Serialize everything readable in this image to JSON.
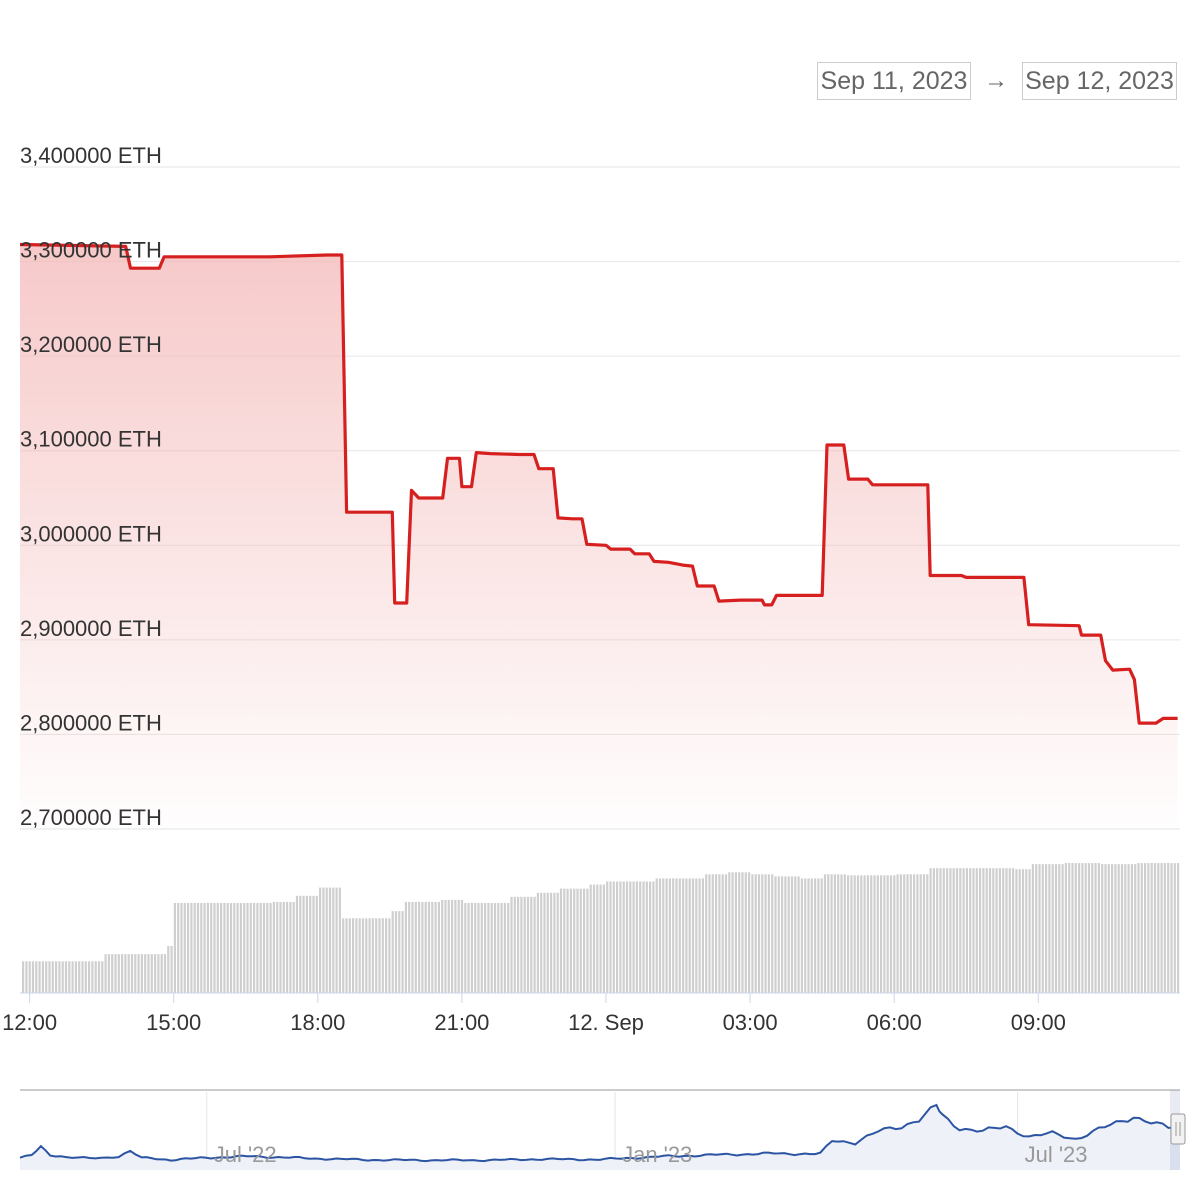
{
  "range_selector": {
    "from_value": "Sep 11, 2023",
    "to_value": "Sep 12, 2023",
    "arrow": "→"
  },
  "colors": {
    "main_line": "#d62020",
    "main_fill": "#f4b7b7",
    "grid": "#e6e6e6",
    "volume_bar": "#cfcfcf",
    "navigator_line": "#2b54a3",
    "navigator_fill": "#eef1f8"
  },
  "chart_data": {
    "type": "line",
    "title": "",
    "xlabel": "",
    "ylabel": "",
    "y_unit": "ETH",
    "ylim": [
      2700000,
      3400000
    ],
    "y_ticks": [
      {
        "value": 3400000,
        "label": "3,400000 ETH"
      },
      {
        "value": 3300000,
        "label": "3,300000 ETH"
      },
      {
        "value": 3200000,
        "label": "3,200000 ETH"
      },
      {
        "value": 3100000,
        "label": "3,100000 ETH"
      },
      {
        "value": 3000000,
        "label": "3,000000 ETH"
      },
      {
        "value": 2900000,
        "label": "2,900000 ETH"
      },
      {
        "value": 2800000,
        "label": "2,800000 ETH"
      },
      {
        "value": 2700000,
        "label": "2,700000 ETH"
      }
    ],
    "x_range_hours": [
      11.8,
      35.95
    ],
    "x_ticks": [
      {
        "hour": 12,
        "label": "12:00"
      },
      {
        "hour": 15,
        "label": "15:00"
      },
      {
        "hour": 18,
        "label": "18:00"
      },
      {
        "hour": 21,
        "label": "21:00"
      },
      {
        "hour": 24,
        "label": "12. Sep"
      },
      {
        "hour": 27,
        "label": "03:00"
      },
      {
        "hour": 30,
        "label": "06:00"
      },
      {
        "hour": 33,
        "label": "09:00"
      }
    ],
    "grid": true,
    "legend": "none",
    "series": [
      {
        "values": [
          [
            11.8,
            3318000
          ],
          [
            14.0,
            3316000
          ],
          [
            14.1,
            3293000
          ],
          [
            14.7,
            3293000
          ],
          [
            14.8,
            3305000
          ],
          [
            17.0,
            3305000
          ],
          [
            18.2,
            3307000
          ],
          [
            18.5,
            3307000
          ],
          [
            18.6,
            3035000
          ],
          [
            19.55,
            3035000
          ],
          [
            19.6,
            2939000
          ],
          [
            19.85,
            2939000
          ],
          [
            19.95,
            3058000
          ],
          [
            20.1,
            3050000
          ],
          [
            20.6,
            3050000
          ],
          [
            20.7,
            3092000
          ],
          [
            20.95,
            3092000
          ],
          [
            21.0,
            3062000
          ],
          [
            21.2,
            3062000
          ],
          [
            21.3,
            3098000
          ],
          [
            21.6,
            3097000
          ],
          [
            22.2,
            3096000
          ],
          [
            22.5,
            3096000
          ],
          [
            22.6,
            3081000
          ],
          [
            22.9,
            3081000
          ],
          [
            23.0,
            3029000
          ],
          [
            23.3,
            3028000
          ],
          [
            23.5,
            3028000
          ],
          [
            23.6,
            3001000
          ],
          [
            24.0,
            3000000
          ],
          [
            24.1,
            2996000
          ],
          [
            24.5,
            2996000
          ],
          [
            24.6,
            2991000
          ],
          [
            24.9,
            2991000
          ],
          [
            25.0,
            2983000
          ],
          [
            25.3,
            2982000
          ],
          [
            25.6,
            2979000
          ],
          [
            25.8,
            2978000
          ],
          [
            25.9,
            2957000
          ],
          [
            26.25,
            2957000
          ],
          [
            26.35,
            2941000
          ],
          [
            26.8,
            2942000
          ],
          [
            27.25,
            2942000
          ],
          [
            27.3,
            2937000
          ],
          [
            27.45,
            2937000
          ],
          [
            27.55,
            2947000
          ],
          [
            28.5,
            2947000
          ],
          [
            28.6,
            3106000
          ],
          [
            28.95,
            3106000
          ],
          [
            29.05,
            3070000
          ],
          [
            29.45,
            3070000
          ],
          [
            29.55,
            3064000
          ],
          [
            30.7,
            3064000
          ],
          [
            30.75,
            2968000
          ],
          [
            31.4,
            2968000
          ],
          [
            31.5,
            2966000
          ],
          [
            32.7,
            2966000
          ],
          [
            32.8,
            2916000
          ],
          [
            33.85,
            2915000
          ],
          [
            33.9,
            2905000
          ],
          [
            34.3,
            2905000
          ],
          [
            34.4,
            2878000
          ],
          [
            34.55,
            2868000
          ],
          [
            34.9,
            2869000
          ],
          [
            35.0,
            2858000
          ],
          [
            35.1,
            2812000
          ],
          [
            35.45,
            2812000
          ],
          [
            35.6,
            2817000
          ],
          [
            35.9,
            2817000
          ]
        ]
      }
    ],
    "volume_bars": [
      [
        11.8,
        31
      ],
      [
        13.5,
        38
      ],
      [
        14.8,
        46
      ],
      [
        15.0,
        88
      ],
      [
        17.0,
        89
      ],
      [
        17.5,
        95
      ],
      [
        18.0,
        103
      ],
      [
        18.5,
        73
      ],
      [
        19.5,
        80
      ],
      [
        19.8,
        89
      ],
      [
        20.5,
        91
      ],
      [
        21.0,
        88
      ],
      [
        22.0,
        94
      ],
      [
        22.5,
        98
      ],
      [
        23.0,
        102
      ],
      [
        23.6,
        106
      ],
      [
        24.0,
        109
      ],
      [
        25.0,
        112
      ],
      [
        26.0,
        116
      ],
      [
        26.5,
        118
      ],
      [
        27.0,
        116
      ],
      [
        27.5,
        114
      ],
      [
        28.0,
        112
      ],
      [
        28.5,
        116
      ],
      [
        29.0,
        115
      ],
      [
        30.0,
        116
      ],
      [
        30.7,
        122
      ],
      [
        32.5,
        121
      ],
      [
        32.8,
        126
      ],
      [
        33.5,
        127
      ],
      [
        34.3,
        126
      ],
      [
        35.0,
        127
      ],
      [
        35.9,
        126
      ]
    ],
    "navigator": {
      "x_labels": [
        {
          "pos": 0.161,
          "label": "Jul '22"
        },
        {
          "pos": 0.513,
          "label": "Jan '23"
        },
        {
          "pos": 0.86,
          "label": "Jul '23"
        }
      ],
      "profile": [
        [
          0.0,
          0.12
        ],
        [
          0.01,
          0.18
        ],
        [
          0.018,
          0.42
        ],
        [
          0.026,
          0.2
        ],
        [
          0.04,
          0.14
        ],
        [
          0.06,
          0.1
        ],
        [
          0.075,
          0.12
        ],
        [
          0.085,
          0.17
        ],
        [
          0.095,
          0.3
        ],
        [
          0.105,
          0.12
        ],
        [
          0.13,
          0.06
        ],
        [
          0.16,
          0.12
        ],
        [
          0.2,
          0.16
        ],
        [
          0.25,
          0.1
        ],
        [
          0.3,
          0.06
        ],
        [
          0.35,
          0.05
        ],
        [
          0.4,
          0.05
        ],
        [
          0.45,
          0.08
        ],
        [
          0.5,
          0.07
        ],
        [
          0.55,
          0.15
        ],
        [
          0.6,
          0.2
        ],
        [
          0.65,
          0.24
        ],
        [
          0.69,
          0.22
        ],
        [
          0.7,
          0.6
        ],
        [
          0.72,
          0.55
        ],
        [
          0.74,
          0.85
        ],
        [
          0.76,
          1.0
        ],
        [
          0.775,
          1.2
        ],
        [
          0.79,
          1.55
        ],
        [
          0.795,
          1.3
        ],
        [
          0.81,
          0.95
        ],
        [
          0.83,
          0.85
        ],
        [
          0.85,
          1.0
        ],
        [
          0.87,
          0.7
        ],
        [
          0.89,
          0.8
        ],
        [
          0.91,
          0.65
        ],
        [
          0.93,
          0.9
        ],
        [
          0.95,
          1.15
        ],
        [
          0.96,
          1.28
        ],
        [
          0.975,
          1.1
        ],
        [
          0.99,
          0.95
        ],
        [
          1.0,
          1.0
        ]
      ]
    }
  }
}
